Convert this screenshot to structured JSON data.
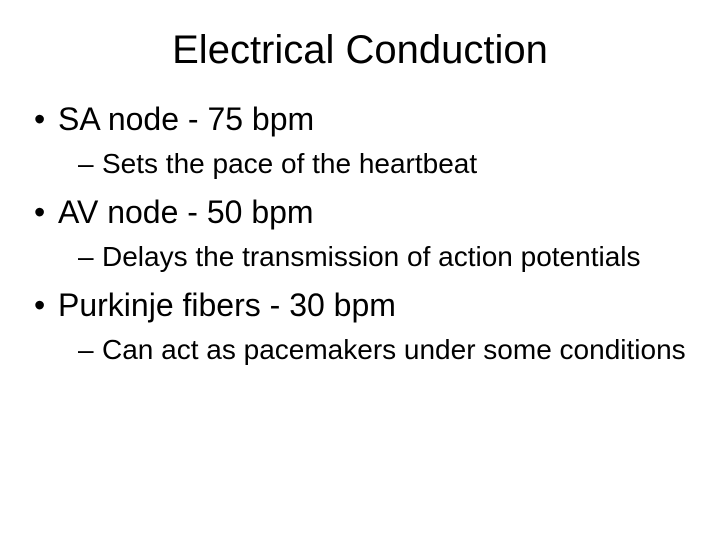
{
  "slide": {
    "title": "Electrical Conduction",
    "title_fontsize": 40,
    "background_color": "#ffffff",
    "text_color": "#000000",
    "font_family": "Arial",
    "bullets": [
      {
        "level": 1,
        "text": "SA node - 75 bpm",
        "fontsize": 32
      },
      {
        "level": 2,
        "text": "Sets the pace of the heartbeat",
        "fontsize": 28
      },
      {
        "level": 1,
        "text": "AV node - 50 bpm",
        "fontsize": 32
      },
      {
        "level": 2,
        "text": "Delays the transmission of action potentials",
        "fontsize": 28
      },
      {
        "level": 1,
        "text": "Purkinje fibers - 30 bpm",
        "fontsize": 32
      },
      {
        "level": 2,
        "text": "Can act as pacemakers under some conditions",
        "fontsize": 28
      }
    ]
  }
}
